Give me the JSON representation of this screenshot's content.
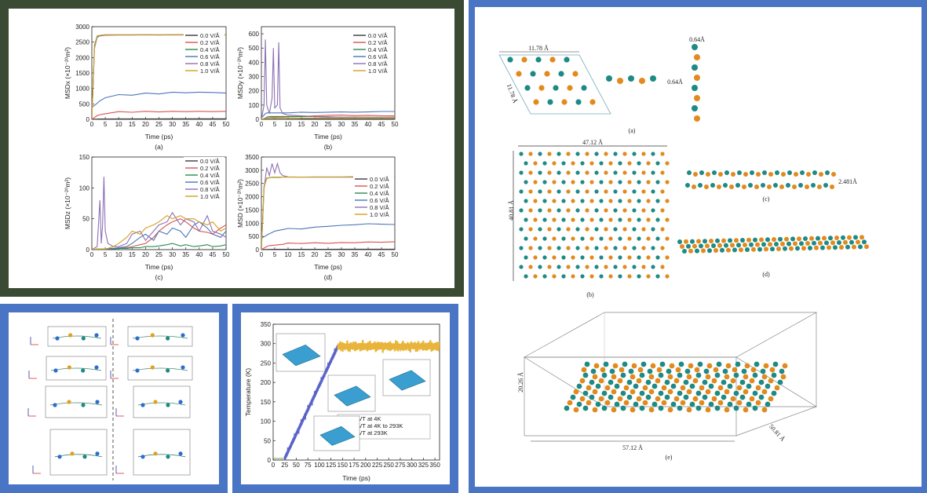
{
  "colors": {
    "frame_dark": "#3a4a33",
    "frame_blue": "#4a75c4",
    "teal_atom": "#1d8a86",
    "orange_atom": "#e28a1e"
  },
  "chart_data": [
    {
      "type": "line",
      "xlabel": "Time (ps)",
      "ylabel": "MSDx (×10⁻²⁰m²)",
      "caption": "(a)",
      "xlim": [
        0,
        50
      ],
      "ylim": [
        0,
        3000
      ],
      "xticks": [
        "0",
        "5",
        "10",
        "15",
        "20",
        "25",
        "30",
        "35",
        "40",
        "45",
        "50"
      ],
      "yticks": [
        "0",
        "500",
        "1000",
        "1500",
        "2000",
        "2500",
        "3000"
      ],
      "legend_position": "top-right",
      "x": [
        0,
        1,
        2,
        3,
        5,
        10,
        15,
        20,
        25,
        30,
        35,
        40,
        45,
        50
      ],
      "series": [
        {
          "name": "0.0 V/Å",
          "color": "#3a3a3a",
          "values": [
            0,
            5,
            8,
            10,
            12,
            14,
            15,
            16,
            16,
            17,
            17,
            18,
            18,
            18
          ]
        },
        {
          "name": "0.2 V/Å",
          "color": "#d9534f",
          "values": [
            0,
            60,
            120,
            150,
            180,
            250,
            230,
            260,
            240,
            260,
            250,
            260,
            250,
            260
          ]
        },
        {
          "name": "0.4 V/Å",
          "color": "#2a8c52",
          "values": [
            0,
            2400,
            2700,
            2720,
            2730,
            2730,
            2730,
            2740,
            2730,
            2740,
            2740,
            2730,
            2740,
            2740
          ]
        },
        {
          "name": "0.6 V/Å",
          "color": "#4a75b8",
          "values": [
            400,
            450,
            520,
            600,
            700,
            800,
            780,
            850,
            820,
            880,
            860,
            880,
            870,
            850
          ]
        },
        {
          "name": "0.8 V/Å",
          "color": "#8e6fb5",
          "values": [
            0,
            2300,
            2650,
            2700,
            2720,
            2730,
            2730,
            2730,
            2730,
            2730,
            2730,
            2730,
            2730,
            2730
          ]
        },
        {
          "name": "1.0 V/Å",
          "color": "#d4a020",
          "values": [
            0,
            2350,
            2680,
            2720,
            2740,
            2740,
            2740,
            2740,
            2740,
            2740,
            2740,
            2740,
            2740,
            2740
          ]
        }
      ]
    },
    {
      "type": "line",
      "xlabel": "Time (ps)",
      "ylabel": "MSDy (×10⁻²⁰m²)",
      "caption": "(b)",
      "xlim": [
        0,
        50
      ],
      "ylim": [
        0,
        650
      ],
      "xticks": [
        "0",
        "5",
        "10",
        "15",
        "20",
        "25",
        "30",
        "35",
        "40",
        "45",
        "50"
      ],
      "yticks": [
        "0",
        "100",
        "200",
        "300",
        "400",
        "500",
        "600"
      ],
      "legend_position": "top-right",
      "x": [
        0,
        1,
        1.5,
        2,
        3,
        4,
        4.5,
        5,
        6,
        6.5,
        7,
        8,
        10,
        15,
        20,
        25,
        30,
        35,
        40,
        45,
        50
      ],
      "series": [
        {
          "name": "0.0 V/Å",
          "color": "#3a3a3a",
          "values": [
            0,
            1,
            1,
            1,
            1,
            1,
            1,
            1,
            1,
            1,
            1,
            1,
            1,
            2,
            2,
            2,
            2,
            2,
            2,
            2,
            2
          ]
        },
        {
          "name": "0.2 V/Å",
          "color": "#d9534f",
          "values": [
            0,
            5,
            8,
            10,
            12,
            14,
            14,
            15,
            15,
            15,
            16,
            16,
            18,
            20,
            25,
            28,
            30,
            26,
            28,
            25,
            24
          ]
        },
        {
          "name": "0.4 V/Å",
          "color": "#2a8c52",
          "values": [
            0,
            5,
            10,
            15,
            20,
            20,
            20,
            20,
            20,
            20,
            20,
            20,
            20,
            20,
            20,
            15,
            15,
            15,
            15,
            15,
            15
          ]
        },
        {
          "name": "0.6 V/Å",
          "color": "#4a75b8",
          "values": [
            10,
            30,
            40,
            45,
            45,
            45,
            45,
            45,
            45,
            45,
            45,
            45,
            45,
            50,
            48,
            50,
            52,
            50,
            52,
            55,
            55
          ]
        },
        {
          "name": "0.8 V/Å",
          "color": "#8e6fb5",
          "values": [
            0,
            100,
            560,
            100,
            40,
            150,
            500,
            80,
            100,
            540,
            80,
            40,
            30,
            25,
            20,
            18,
            15,
            15,
            14,
            14,
            13
          ]
        },
        {
          "name": "1.0 V/Å",
          "color": "#d4a020",
          "values": [
            0,
            5,
            8,
            10,
            10,
            10,
            10,
            10,
            10,
            10,
            10,
            10,
            10,
            10,
            10,
            10,
            10,
            10,
            10,
            10,
            10
          ]
        }
      ]
    },
    {
      "type": "line",
      "xlabel": "Time (ps)",
      "ylabel": "MSDz (×10⁻²⁰m²)",
      "caption": "(c)",
      "xlim": [
        0,
        50
      ],
      "ylim": [
        0,
        150
      ],
      "xticks": [
        "0",
        "5",
        "10",
        "15",
        "20",
        "25",
        "30",
        "35",
        "40",
        "45",
        "50"
      ],
      "yticks": [
        "0",
        "50",
        "100",
        "150"
      ],
      "legend_position": "top-right",
      "x": [
        0,
        2,
        3,
        3.5,
        4,
        4.5,
        5,
        6,
        8,
        10,
        13,
        15,
        18,
        20,
        23,
        25,
        28,
        30,
        33,
        35,
        38,
        40,
        43,
        45,
        48,
        50
      ],
      "series": [
        {
          "name": "0.0 V/Å",
          "color": "#3a3a3a",
          "values": [
            0,
            0,
            0,
            0,
            0,
            0,
            0,
            0,
            0,
            0,
            0,
            0,
            0,
            0,
            0,
            0,
            0,
            0,
            0,
            0,
            0,
            0,
            0,
            0,
            0,
            0
          ]
        },
        {
          "name": "0.2 V/Å",
          "color": "#d9534f",
          "values": [
            0,
            1,
            1,
            1,
            1,
            1,
            1,
            2,
            2,
            2,
            3,
            5,
            8,
            10,
            20,
            30,
            40,
            45,
            50,
            45,
            35,
            30,
            28,
            25,
            35,
            40
          ]
        },
        {
          "name": "0.4 V/Å",
          "color": "#2a8c52",
          "values": [
            0,
            1,
            1,
            1,
            1,
            1,
            1,
            1,
            1,
            2,
            2,
            3,
            3,
            5,
            5,
            6,
            8,
            10,
            6,
            8,
            5,
            6,
            8,
            5,
            6,
            8
          ]
        },
        {
          "name": "0.6 V/Å",
          "color": "#4a75b8",
          "values": [
            0,
            1,
            1,
            1,
            1,
            1,
            1,
            1,
            2,
            3,
            5,
            10,
            20,
            25,
            15,
            30,
            25,
            35,
            30,
            20,
            40,
            45,
            35,
            25,
            20,
            30
          ]
        },
        {
          "name": "0.8 V/Å",
          "color": "#8e6fb5",
          "values": [
            0,
            5,
            80,
            10,
            40,
            118,
            30,
            10,
            5,
            5,
            10,
            25,
            30,
            15,
            30,
            40,
            45,
            60,
            40,
            50,
            45,
            30,
            55,
            30,
            25,
            20
          ]
        },
        {
          "name": "1.0 V/Å",
          "color": "#d4a020",
          "values": [
            0,
            1,
            1,
            1,
            1,
            1,
            1,
            2,
            5,
            10,
            20,
            30,
            25,
            35,
            40,
            45,
            55,
            50,
            55,
            50,
            50,
            45,
            40,
            45,
            30,
            35
          ]
        }
      ]
    },
    {
      "type": "line",
      "xlabel": "Time (ps)",
      "ylabel": "MSD (×10⁻²⁰m²)",
      "caption": "(d)",
      "xlim": [
        0,
        50
      ],
      "ylim": [
        0,
        3500
      ],
      "xticks": [
        "0",
        "5",
        "10",
        "15",
        "20",
        "25",
        "30",
        "35",
        "40",
        "45",
        "50"
      ],
      "yticks": [
        "0",
        "500",
        "1000",
        "1500",
        "2000",
        "2500",
        "3000",
        "3500"
      ],
      "legend_position": "right",
      "x": [
        0,
        1,
        2,
        3,
        4,
        5,
        6,
        7,
        8,
        10,
        15,
        20,
        25,
        30,
        35,
        40,
        45,
        50
      ],
      "series": [
        {
          "name": "0.0 V/Å",
          "color": "#3a3a3a",
          "values": [
            0,
            5,
            8,
            10,
            12,
            12,
            13,
            13,
            14,
            14,
            15,
            16,
            16,
            17,
            17,
            18,
            18,
            18
          ]
        },
        {
          "name": "0.2 V/Å",
          "color": "#d9534f",
          "values": [
            0,
            60,
            120,
            150,
            160,
            170,
            180,
            190,
            200,
            250,
            230,
            260,
            240,
            270,
            260,
            290,
            280,
            300
          ]
        },
        {
          "name": "0.4 V/Å",
          "color": "#2a8c52",
          "values": [
            0,
            2400,
            2700,
            2720,
            2730,
            2730,
            2730,
            2730,
            2740,
            2740,
            2740,
            2740,
            2740,
            2740,
            2740,
            2740,
            2740,
            2740
          ]
        },
        {
          "name": "0.6 V/Å",
          "color": "#4a75b8",
          "values": [
            450,
            480,
            550,
            600,
            650,
            700,
            720,
            740,
            760,
            800,
            780,
            850,
            880,
            920,
            940,
            980,
            960,
            950
          ]
        },
        {
          "name": "0.8 V/Å",
          "color": "#8e6fb5",
          "values": [
            0,
            2300,
            3100,
            2800,
            3250,
            2900,
            3250,
            2900,
            2800,
            2750,
            2740,
            2740,
            2740,
            2740,
            2740,
            2740,
            2740,
            2740
          ]
        },
        {
          "name": "1.0 V/Å",
          "color": "#d4a020",
          "values": [
            0,
            2350,
            2680,
            2720,
            2740,
            2740,
            2740,
            2740,
            2740,
            2740,
            2740,
            2750,
            2750,
            2750,
            2760,
            2760,
            2760,
            2760
          ]
        }
      ]
    },
    {
      "type": "line",
      "xlabel": "Time (ps)",
      "ylabel": "Temperature (K)",
      "xlim": [
        0,
        360
      ],
      "ylim": [
        0,
        350
      ],
      "xticks": [
        "0",
        "25",
        "50",
        "75",
        "100",
        "125",
        "150",
        "175",
        "200",
        "225",
        "250",
        "275",
        "300",
        "325",
        "350"
      ],
      "yticks": [
        "0",
        "50",
        "100",
        "150",
        "200",
        "250",
        "300",
        "350"
      ],
      "legend_position": "bottom-right",
      "series": [
        {
          "name": "NVT at 4K",
          "color": "#7db04a",
          "x": [
            0,
            25
          ],
          "values": [
            4,
            4
          ]
        },
        {
          "name": "NVT at 4K to 293K",
          "color": "#5a62c8",
          "x": [
            25,
            140
          ],
          "values": [
            4,
            293
          ]
        },
        {
          "name": "NVT at 293K",
          "color": "#e8b43a",
          "x": [
            140,
            360
          ],
          "values": [
            293,
            293
          ]
        }
      ]
    }
  ],
  "structure_figure": {
    "captions": [
      "(a)",
      "(b)",
      "(c)",
      "(d)",
      "(e)"
    ],
    "dims": {
      "a_width": "11.78 Å",
      "a_side": "11.78 Å",
      "a_thick_top": "0.64Å",
      "a_thick_side": "0.64Å",
      "b_width": "47.12 Å",
      "b_height": "40.81 Å",
      "c_gap": "2.481Å",
      "e_height": "20.26 Å",
      "e_width": "57.12 Å",
      "e_depth": "50.81 Å"
    }
  }
}
